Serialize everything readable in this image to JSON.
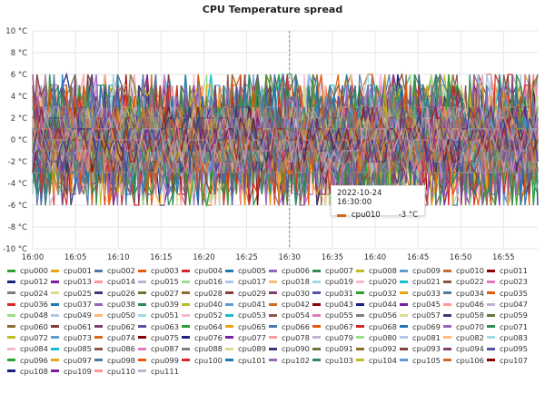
{
  "colors": {
    "palette": [
      "#2ca02c",
      "#e8a317",
      "#4e79a7",
      "#e8590c",
      "#d62728",
      "#1f77b4",
      "#9467bd",
      "#2e8b57",
      "#bcbd22",
      "#5b9bd5",
      "#d2691e",
      "#8b0000",
      "#1a237e",
      "#7b1fa2",
      "#ff9896",
      "#c5b0d5",
      "#98df8a",
      "#aec7e8",
      "#ffbb78",
      "#9edae5",
      "#f7b6d2",
      "#17becf",
      "#8c564b",
      "#e377c2",
      "#7f7f7f",
      "#dbdb8d",
      "#393b79",
      "#637939",
      "#8c6d31",
      "#843c39",
      "#7b4173",
      "#5254a3"
    ],
    "gridline": "#e6e6e6",
    "crosshair": "#8a8a8a"
  },
  "chart_data": {
    "type": "line",
    "title": "CPU Temperature spread",
    "unit": "°C",
    "ylim": [
      -10,
      10
    ],
    "yticks": [
      10,
      8,
      6,
      4,
      2,
      0,
      -2,
      -4,
      -6,
      -8,
      -10
    ],
    "ytick_labels": [
      "10 °C",
      "8 °C",
      "6 °C",
      "4 °C",
      "2 °C",
      "0 °C",
      "-2 °C",
      "-4 °C",
      "-6 °C",
      "-8 °C",
      "-10 °C"
    ],
    "x_start": "16:00",
    "x_end": "16:59",
    "xticks": [
      "16:00",
      "16:05",
      "16:10",
      "16:15",
      "16:20",
      "16:25",
      "16:30",
      "16:35",
      "16:40",
      "16:45",
      "16:50",
      "16:55"
    ],
    "xtick_minutes": [
      0,
      5,
      10,
      15,
      20,
      25,
      30,
      35,
      40,
      45,
      50,
      55
    ],
    "points_per_series": 120,
    "value_range": [
      -6,
      6
    ],
    "grid": true,
    "legend_position": "bottom",
    "cursor": {
      "time": "2022-10-24 16:30:00",
      "minute": 30,
      "series": "cpu010",
      "value": "-3 °C",
      "value_num": -3
    },
    "series": [
      "cpu000",
      "cpu001",
      "cpu002",
      "cpu003",
      "cpu004",
      "cpu005",
      "cpu006",
      "cpu007",
      "cpu008",
      "cpu009",
      "cpu010",
      "cpu011",
      "cpu012",
      "cpu013",
      "cpu014",
      "cpu015",
      "cpu016",
      "cpu017",
      "cpu018",
      "cpu019",
      "cpu020",
      "cpu021",
      "cpu022",
      "cpu023",
      "cpu024",
      "cpu025",
      "cpu026",
      "cpu027",
      "cpu028",
      "cpu029",
      "cpu030",
      "cpu031",
      "cpu032",
      "cpu033",
      "cpu034",
      "cpu035",
      "cpu036",
      "cpu037",
      "cpu038",
      "cpu039",
      "cpu040",
      "cpu041",
      "cpu042",
      "cpu043",
      "cpu044",
      "cpu045",
      "cpu046",
      "cpu047",
      "cpu048",
      "cpu049",
      "cpu050",
      "cpu051",
      "cpu052",
      "cpu053",
      "cpu054",
      "cpu055",
      "cpu056",
      "cpu057",
      "cpu058",
      "cpu059",
      "cpu060",
      "cpu061",
      "cpu062",
      "cpu063",
      "cpu064",
      "cpu065",
      "cpu066",
      "cpu067",
      "cpu068",
      "cpu069",
      "cpu070",
      "cpu071",
      "cpu072",
      "cpu073",
      "cpu074",
      "cpu075",
      "cpu076",
      "cpu077",
      "cpu078",
      "cpu079",
      "cpu080",
      "cpu081",
      "cpu082",
      "cpu083",
      "cpu084",
      "cpu085",
      "cpu086",
      "cpu087",
      "cpu088",
      "cpu089",
      "cpu090",
      "cpu091",
      "cpu092",
      "cpu093",
      "cpu094",
      "cpu095",
      "cpu096",
      "cpu097",
      "cpu098",
      "cpu099",
      "cpu100",
      "cpu101",
      "cpu102",
      "cpu103",
      "cpu104",
      "cpu105",
      "cpu106",
      "cpu107",
      "cpu108",
      "cpu109",
      "cpu110",
      "cpu111"
    ]
  }
}
